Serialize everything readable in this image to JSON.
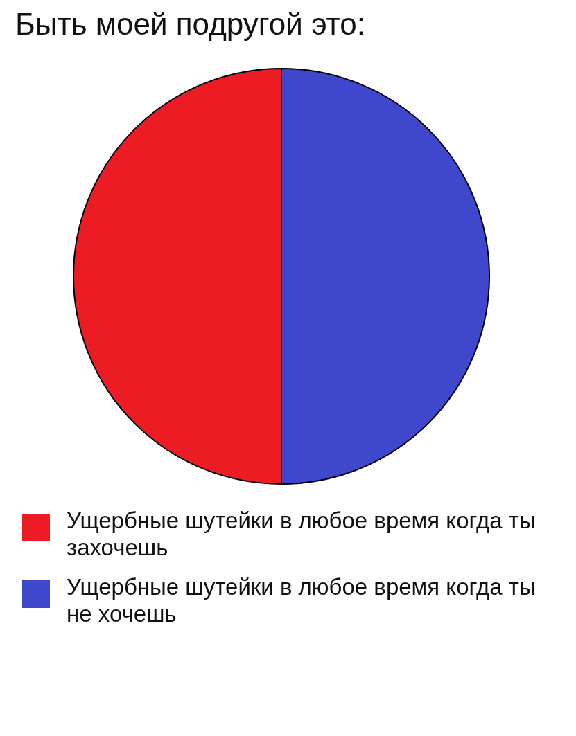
{
  "chart_data": {
    "type": "pie",
    "title": "Быть моей подругой это:",
    "categories": [
      "Ущербные шутейки в любое время когда ты захочешь",
      "Ущербные шутейки в любое время когда ты не хочешь"
    ],
    "values": [
      50,
      50
    ],
    "colors": [
      "#ed1c24",
      "#3f48cc"
    ],
    "legend": "bottom"
  }
}
